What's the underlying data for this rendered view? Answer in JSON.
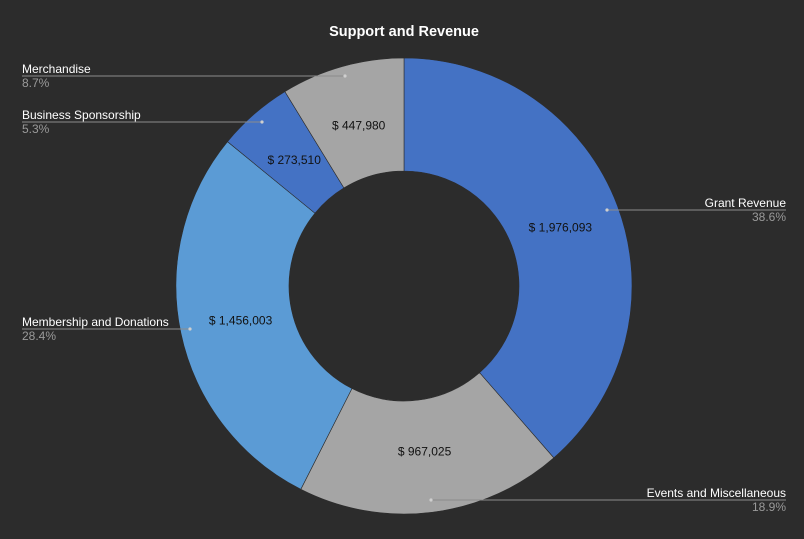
{
  "chart_data": {
    "type": "pie",
    "donut": true,
    "title": "Support and Revenue",
    "currency_prefix": "$ ",
    "slices": [
      {
        "name": "Grant Revenue",
        "value": 1976093,
        "value_label": "$ 1,976,093",
        "percent_label": "38.6%",
        "color": "#4472c4"
      },
      {
        "name": "Events and Miscellaneous",
        "value": 967025,
        "value_label": "$ 967,025",
        "percent_label": "18.9%",
        "color": "#a5a5a5"
      },
      {
        "name": "Membership and Donations",
        "value": 1456003,
        "value_label": "$ 1,456,003",
        "percent_label": "28.4%",
        "color": "#5b9bd5"
      },
      {
        "name": "Business Sponsorship",
        "value": 273510,
        "value_label": "$ 273,510",
        "percent_label": "5.3%",
        "color": "#4472c4"
      },
      {
        "name": "Merchandise",
        "value": 447980,
        "value_label": "$ 447,980",
        "percent_label": "8.7%",
        "color": "#a5a5a5"
      }
    ],
    "legend_placement": "callouts-outside",
    "background": "#2c2c2c",
    "leader_color": "#8c8c8c"
  }
}
